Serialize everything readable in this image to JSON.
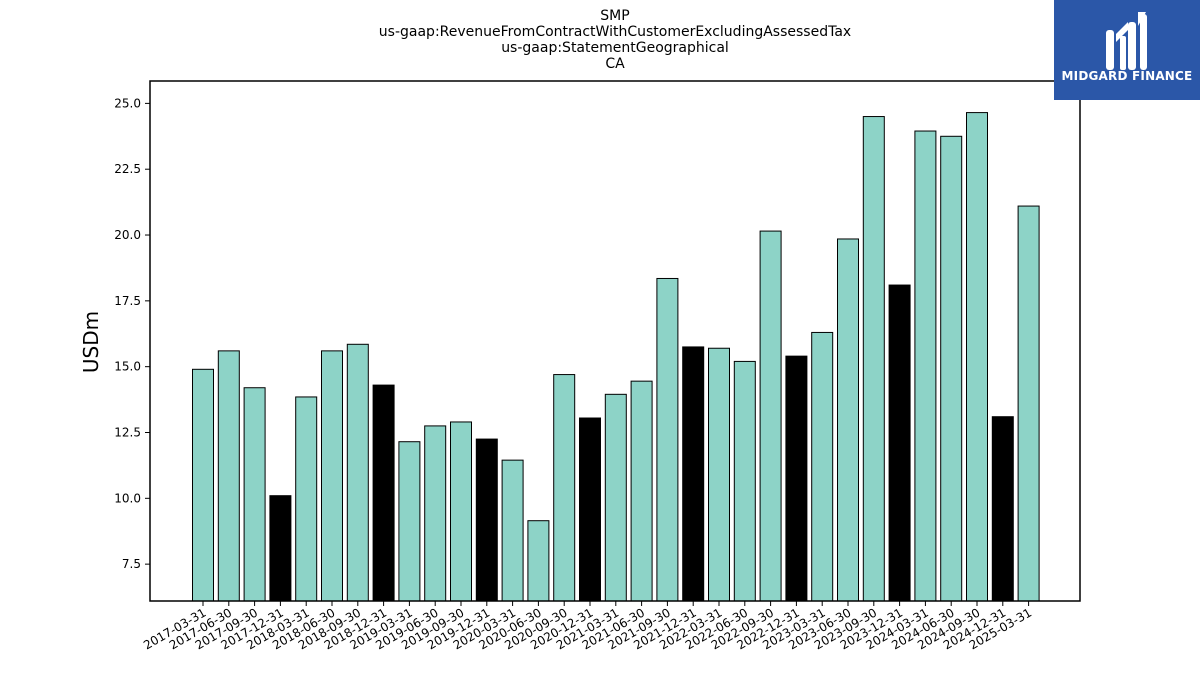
{
  "chart_data": {
    "type": "bar",
    "title_lines": [
      "SMP",
      "us-gaap:RevenueFromContractWithCustomerExcludingAssessedTax",
      "us-gaap:StatementGeographical",
      "CA"
    ],
    "ylabel": "USDm",
    "xlabel": "",
    "ylim": [
      6.1,
      25.85
    ],
    "yticks": [
      "7.5",
      "10.0",
      "12.5",
      "15.0",
      "17.5",
      "20.0",
      "22.5",
      "25.0"
    ],
    "categories": [
      "2017-03-31",
      "2017-06-30",
      "2017-09-30",
      "2017-12-31",
      "2018-03-31",
      "2018-06-30",
      "2018-09-30",
      "2018-12-31",
      "2019-03-31",
      "2019-06-30",
      "2019-09-30",
      "2019-12-31",
      "2020-03-31",
      "2020-06-30",
      "2020-09-30",
      "2020-12-31",
      "2021-03-31",
      "2021-06-30",
      "2021-09-30",
      "2021-12-31",
      "2022-03-31",
      "2022-06-30",
      "2022-09-30",
      "2022-12-31",
      "2023-03-31",
      "2023-06-30",
      "2023-09-30",
      "2023-12-31",
      "2024-03-31",
      "2024-06-30",
      "2024-09-30",
      "2024-12-31",
      "2025-03-31"
    ],
    "values": [
      14.9,
      15.6,
      14.2,
      10.1,
      13.85,
      15.6,
      15.85,
      14.3,
      12.15,
      12.75,
      12.9,
      12.25,
      11.45,
      9.15,
      14.7,
      13.05,
      13.95,
      14.45,
      18.35,
      15.75,
      15.7,
      15.2,
      20.15,
      15.4,
      16.3,
      19.85,
      24.5,
      18.1,
      23.95,
      23.75,
      24.65,
      13.1,
      21.1
    ],
    "highlight": [
      false,
      false,
      false,
      true,
      false,
      false,
      false,
      true,
      false,
      false,
      false,
      true,
      false,
      false,
      false,
      true,
      false,
      false,
      false,
      true,
      false,
      false,
      false,
      true,
      false,
      false,
      false,
      true,
      false,
      false,
      false,
      true,
      false
    ],
    "colors": {
      "normal": "#8dd3c7",
      "highlight": "#000000",
      "edge": "#000000"
    },
    "grid": false
  },
  "logo": {
    "text": "MIDGARD FINANCE",
    "background": "#2b57a8"
  }
}
